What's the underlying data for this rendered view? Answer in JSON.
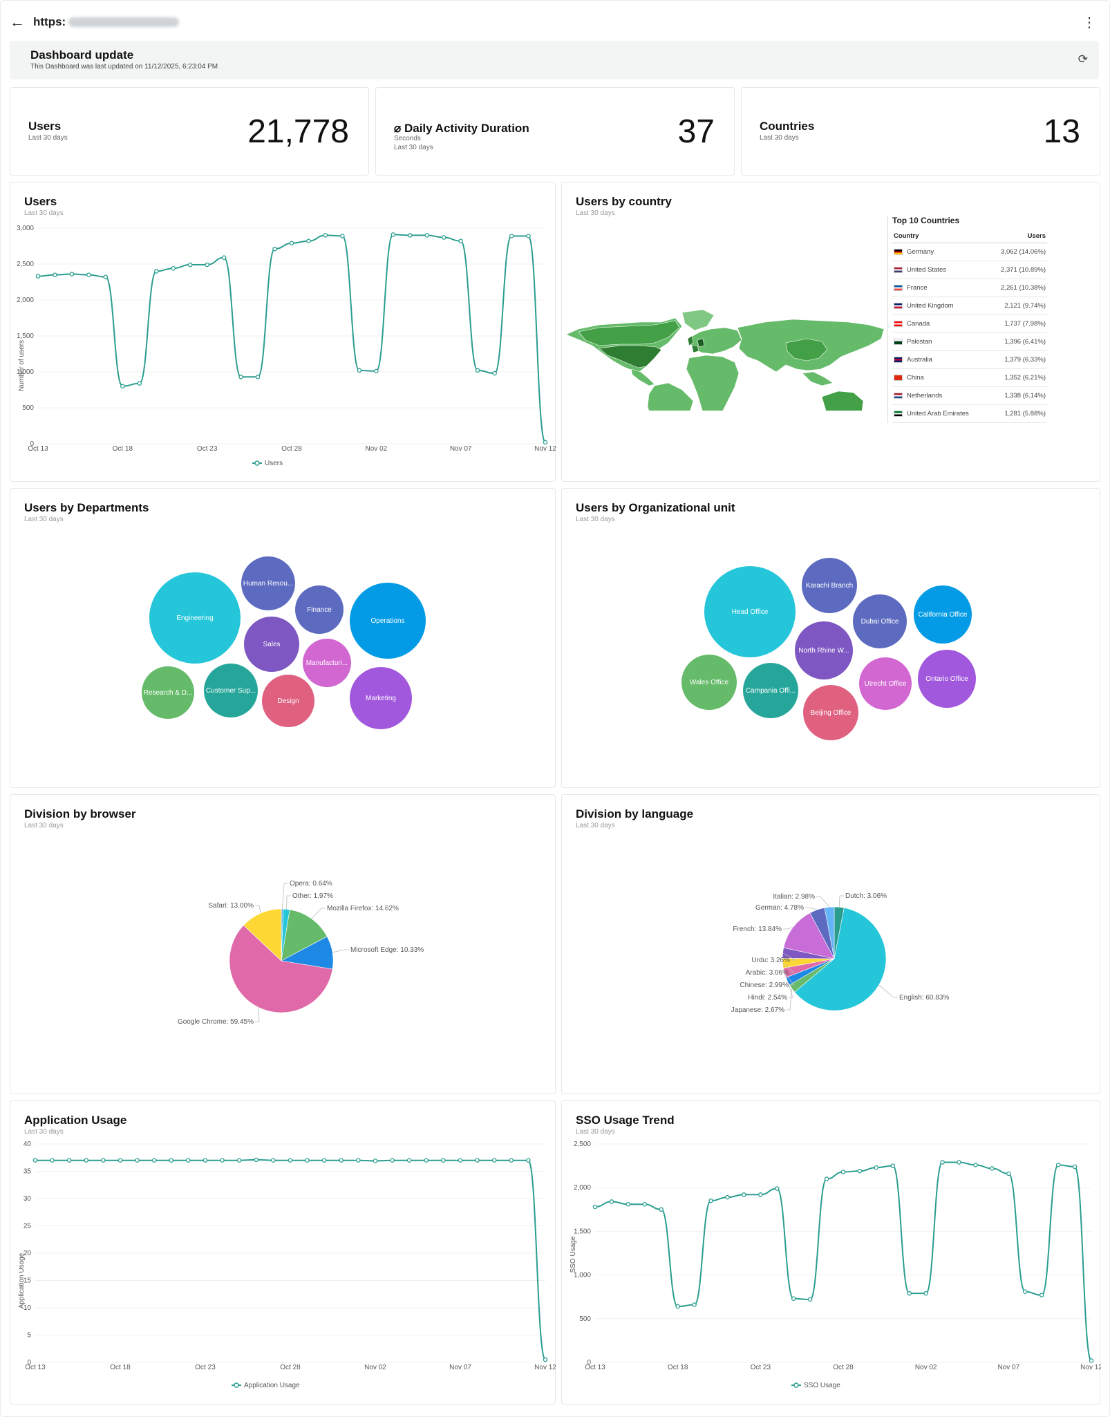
{
  "browser": {
    "url_prefix": "https:",
    "back_icon": "arrow-left-icon",
    "menu_icon": "kebab-icon"
  },
  "banner": {
    "title": "Dashboard update",
    "subtitle": "This Dashboard was last updated on 11/12/2025, 6:23:04 PM"
  },
  "kpis": {
    "users": {
      "label": "Users",
      "sub": "Last 30 days",
      "value": "21,778"
    },
    "duration": {
      "label": "⌀ Daily Activity Duration",
      "sub1": "Seconds",
      "sub2": "Last 30 days",
      "value": "37"
    },
    "countries": {
      "label": "Countries",
      "sub": "Last 30 days",
      "value": "13"
    }
  },
  "users_chart": {
    "title": "Users",
    "subtitle": "Last 30 days",
    "ylabel": "Number of users",
    "legend": "Users",
    "yticks": [
      "0",
      "500",
      "1,000",
      "1,500",
      "2,000",
      "2,500",
      "3,000"
    ],
    "xticks": [
      "Oct 13",
      "Oct 18",
      "Oct 23",
      "Oct 28",
      "Nov 02",
      "Nov 07",
      "Nov 12"
    ]
  },
  "country_card": {
    "title": "Users by country",
    "subtitle": "Last 30 days",
    "table_title": "Top 10 Countries",
    "col_country": "Country",
    "col_users": "Users",
    "rows": [
      {
        "country": "Germany",
        "users": "3,062 (14.06%)",
        "flag": [
          "#000000",
          "#dd0000",
          "#ffce00"
        ]
      },
      {
        "country": "United States",
        "users": "2,371 (10.89%)",
        "flag": [
          "#b22234",
          "#ffffff",
          "#3c3b6e"
        ]
      },
      {
        "country": "France",
        "users": "2,261 (10.38%)",
        "flag": [
          "#0055a4",
          "#ffffff",
          "#ef4135"
        ]
      },
      {
        "country": "United Kingdom",
        "users": "2,121 (9.74%)",
        "flag": [
          "#012169",
          "#ffffff",
          "#c8102e"
        ]
      },
      {
        "country": "Canada",
        "users": "1,737 (7.98%)",
        "flag": [
          "#ff0000",
          "#ffffff",
          "#ff0000"
        ]
      },
      {
        "country": "Pakistan",
        "users": "1,396 (6.41%)",
        "flag": [
          "#ffffff",
          "#01411c",
          "#01411c"
        ]
      },
      {
        "country": "Australia",
        "users": "1,379 (6.33%)",
        "flag": [
          "#012169",
          "#e4002b",
          "#012169"
        ]
      },
      {
        "country": "China",
        "users": "1,352 (6.21%)",
        "flag": [
          "#de2910",
          "#de2910",
          "#de2910"
        ]
      },
      {
        "country": "Netherlands",
        "users": "1,338 (6.14%)",
        "flag": [
          "#ae1c28",
          "#ffffff",
          "#21468b"
        ]
      },
      {
        "country": "United Arab Emirates",
        "users": "1,281 (5.88%)",
        "flag": [
          "#00732f",
          "#ffffff",
          "#000000"
        ]
      }
    ]
  },
  "departments": {
    "title": "Users by Departments",
    "subtitle": "Last 30 days",
    "bubbles": [
      "Engineering",
      "Human Resou...",
      "Finance",
      "Operations",
      "Sales",
      "Manufacturi...",
      "Research & D...",
      "Customer Sup...",
      "Design",
      "Marketing"
    ]
  },
  "org_units": {
    "title": "Users by Organizational unit",
    "subtitle": "Last 30 days",
    "bubbles": [
      "Head Office",
      "Karachi Branch",
      "Dubai Office",
      "California Office",
      "North Rhine W...",
      "Wales Office",
      "Campania Offi...",
      "Utrecht Office",
      "Ontario Office",
      "Beijing Office"
    ]
  },
  "browser_chart": {
    "title": "Division by browser",
    "subtitle": "Last 30 days",
    "slices": [
      {
        "name": "Opera",
        "pct": 0.64,
        "label": "Opera: 0.64%",
        "color": "#5ab4e6"
      },
      {
        "name": "Other",
        "pct": 1.97,
        "label": "Other: 1.97%",
        "color": "#26c6da"
      },
      {
        "name": "Mozilla Firefox",
        "pct": 14.62,
        "label": "Mozilla Firefox: 14.62%",
        "color": "#66bb6a"
      },
      {
        "name": "Microsoft Edge",
        "pct": 10.33,
        "label": "Microsoft Edge: 10.33%",
        "color": "#1e88e5"
      },
      {
        "name": "Google Chrome",
        "pct": 59.45,
        "label": "Google Chrome: 59.45%",
        "color": "#e06aa9"
      },
      {
        "name": "Safari",
        "pct": 13.0,
        "label": "Safari: 13.00%",
        "color": "#fdd835"
      }
    ]
  },
  "language_chart": {
    "title": "Division by language",
    "subtitle": "Last 30 days",
    "slices": [
      {
        "name": "Dutch",
        "pct": 3.06,
        "label": "Dutch: 3.06%",
        "color": "#2a9d8f"
      },
      {
        "name": "English",
        "pct": 60.83,
        "label": "English: 60.83%",
        "color": "#26c6da"
      },
      {
        "name": "Japanese",
        "pct": 2.67,
        "label": "Japanese: 2.67%",
        "color": "#66bb6a"
      },
      {
        "name": "Hindi",
        "pct": 2.54,
        "label": "Hindi: 2.54%",
        "color": "#1e88e5"
      },
      {
        "name": "Chinese",
        "pct": 2.99,
        "label": "Chinese: 2.99%",
        "color": "#e06aa9"
      },
      {
        "name": "Arabic",
        "pct": 3.06,
        "label": "Arabic: 3.06%",
        "color": "#fdd835"
      },
      {
        "name": "Urdu",
        "pct": 3.26,
        "label": "Urdu: 3.26%",
        "color": "#7e57c2"
      },
      {
        "name": "French",
        "pct": 13.84,
        "label": "French: 13.84%",
        "color": "#c86dd7"
      },
      {
        "name": "German",
        "pct": 4.78,
        "label": "German: 4.78%",
        "color": "#5c6bc0"
      },
      {
        "name": "Italian",
        "pct": 2.98,
        "label": "Italian: 2.98%",
        "color": "#64b5f6"
      }
    ]
  },
  "app_usage": {
    "title": "Application Usage",
    "subtitle": "Last 30 days",
    "ylabel": "Application Usage",
    "legend": "Application Usage",
    "yticks": [
      "0",
      "5",
      "10",
      "15",
      "20",
      "25",
      "30",
      "35",
      "40"
    ],
    "xticks": [
      "Oct 13",
      "Oct 18",
      "Oct 23",
      "Oct 28",
      "Nov 02",
      "Nov 07",
      "Nov 12"
    ]
  },
  "sso_usage": {
    "title": "SSO Usage Trend",
    "subtitle": "Last 30 days",
    "ylabel": "SSO Usage",
    "legend": "SSO Usage",
    "yticks": [
      "0",
      "500",
      "1,000",
      "1,500",
      "2,000",
      "2,500"
    ],
    "xticks": [
      "Oct 13",
      "Oct 18",
      "Oct 23",
      "Oct 28",
      "Nov 02",
      "Nov 07",
      "Nov 12"
    ]
  },
  "chart_data": [
    {
      "type": "line",
      "title": "Users",
      "ylabel": "Number of users",
      "series_name": "Users",
      "ylim": [
        0,
        3000
      ],
      "color": "#2a9d8f",
      "x": [
        "Oct 13",
        "Oct 14",
        "Oct 15",
        "Oct 16",
        "Oct 17",
        "Oct 18",
        "Oct 19",
        "Oct 20",
        "Oct 21",
        "Oct 22",
        "Oct 23",
        "Oct 24",
        "Oct 25",
        "Oct 26",
        "Oct 27",
        "Oct 28",
        "Oct 29",
        "Oct 30",
        "Oct 31",
        "Nov 01",
        "Nov 02",
        "Nov 03",
        "Nov 04",
        "Nov 05",
        "Nov 06",
        "Nov 07",
        "Nov 08",
        "Nov 09",
        "Nov 10",
        "Nov 11",
        "Nov 12"
      ],
      "values": [
        2330,
        2350,
        2360,
        2350,
        2320,
        800,
        840,
        2400,
        2440,
        2490,
        2490,
        2590,
        930,
        930,
        2710,
        2790,
        2820,
        2900,
        2890,
        1020,
        1010,
        2910,
        2900,
        2900,
        2870,
        2820,
        1020,
        980,
        2890,
        2890,
        20
      ]
    },
    {
      "type": "pie",
      "title": "Division by browser",
      "categories": [
        "Opera",
        "Other",
        "Mozilla Firefox",
        "Microsoft Edge",
        "Google Chrome",
        "Safari"
      ],
      "values": [
        0.64,
        1.97,
        14.62,
        10.33,
        59.45,
        13.0
      ]
    },
    {
      "type": "pie",
      "title": "Division by language",
      "categories": [
        "Dutch",
        "English",
        "Japanese",
        "Hindi",
        "Chinese",
        "Arabic",
        "Urdu",
        "French",
        "German",
        "Italian"
      ],
      "values": [
        3.06,
        60.83,
        2.67,
        2.54,
        2.99,
        3.06,
        3.26,
        13.84,
        4.78,
        2.98
      ]
    },
    {
      "type": "line",
      "title": "Application Usage",
      "ylabel": "Application Usage",
      "series_name": "Application Usage",
      "ylim": [
        0,
        40
      ],
      "color": "#2a9d8f",
      "x": [
        "Oct 13",
        "Oct 14",
        "Oct 15",
        "Oct 16",
        "Oct 17",
        "Oct 18",
        "Oct 19",
        "Oct 20",
        "Oct 21",
        "Oct 22",
        "Oct 23",
        "Oct 24",
        "Oct 25",
        "Oct 26",
        "Oct 27",
        "Oct 28",
        "Oct 29",
        "Oct 30",
        "Oct 31",
        "Nov 01",
        "Nov 02",
        "Nov 03",
        "Nov 04",
        "Nov 05",
        "Nov 06",
        "Nov 07",
        "Nov 08",
        "Nov 09",
        "Nov 10",
        "Nov 11",
        "Nov 12"
      ],
      "values": [
        37,
        37,
        37,
        37,
        37,
        37,
        37,
        37,
        37,
        37,
        37,
        37,
        37,
        37.1,
        37,
        37,
        37,
        37,
        37,
        37,
        36.9,
        37,
        37,
        37,
        37,
        37,
        37,
        37,
        37,
        37,
        0.5
      ]
    },
    {
      "type": "line",
      "title": "SSO Usage Trend",
      "ylabel": "SSO Usage",
      "series_name": "SSO Usage",
      "ylim": [
        0,
        2500
      ],
      "color": "#2a9d8f",
      "x": [
        "Oct 13",
        "Oct 14",
        "Oct 15",
        "Oct 16",
        "Oct 17",
        "Oct 18",
        "Oct 19",
        "Oct 20",
        "Oct 21",
        "Oct 22",
        "Oct 23",
        "Oct 24",
        "Oct 25",
        "Oct 26",
        "Oct 27",
        "Oct 28",
        "Oct 29",
        "Oct 30",
        "Oct 31",
        "Nov 01",
        "Nov 02",
        "Nov 03",
        "Nov 04",
        "Nov 05",
        "Nov 06",
        "Nov 07",
        "Nov 08",
        "Nov 09",
        "Nov 10",
        "Nov 11",
        "Nov 12"
      ],
      "values": [
        1780,
        1840,
        1810,
        1810,
        1750,
        640,
        660,
        1850,
        1890,
        1920,
        1920,
        1990,
        730,
        720,
        2100,
        2180,
        2190,
        2230,
        2250,
        790,
        790,
        2290,
        2290,
        2260,
        2220,
        2160,
        810,
        770,
        2260,
        2240,
        20
      ]
    }
  ]
}
